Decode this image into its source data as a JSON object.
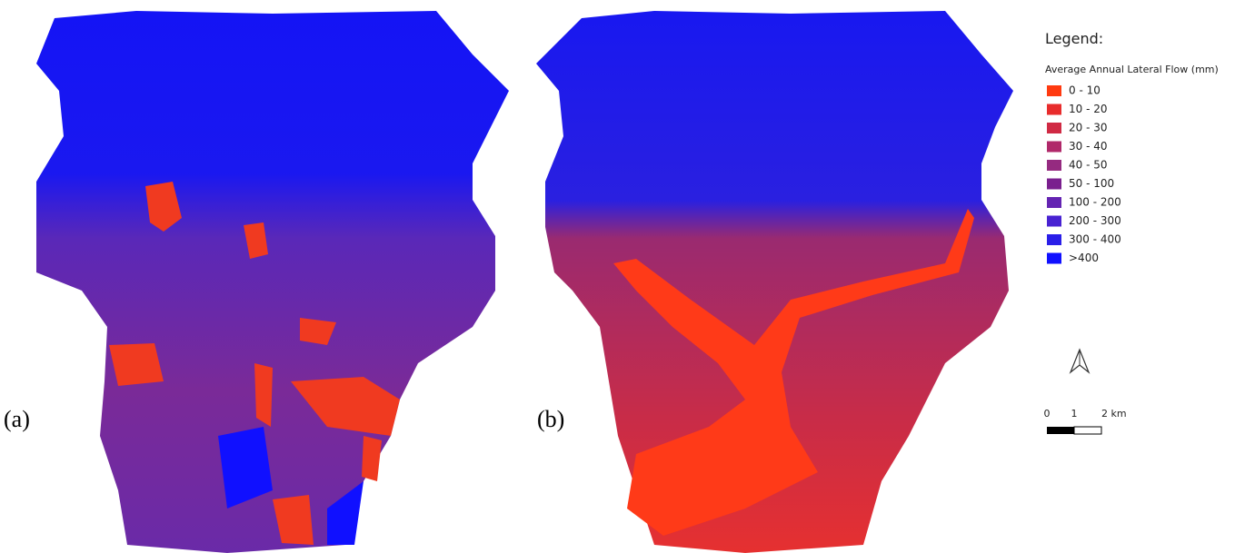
{
  "panels": [
    {
      "label": "(a)"
    },
    {
      "label": "(b)"
    }
  ],
  "legend": {
    "title": "Legend:",
    "subtitle": "Average Annual Lateral Flow (mm)",
    "items": [
      {
        "label": "0 - 10",
        "color": "#ff3a10"
      },
      {
        "label": "10 - 20",
        "color": "#e82c2c"
      },
      {
        "label": "20 - 30",
        "color": "#d02a44"
      },
      {
        "label": "30 - 40",
        "color": "#b0286a"
      },
      {
        "label": "40 - 50",
        "color": "#952a80"
      },
      {
        "label": "50 - 100",
        "color": "#7a1f8e"
      },
      {
        "label": "100 - 200",
        "color": "#6424b2"
      },
      {
        "label": "200 - 300",
        "color": "#4822d2"
      },
      {
        "label": "300 - 400",
        "color": "#2a1ee8"
      },
      {
        "label": ">400",
        "color": "#1010ff"
      }
    ]
  },
  "scale_bar": {
    "labels": [
      "0",
      "1",
      "2 km"
    ]
  }
}
